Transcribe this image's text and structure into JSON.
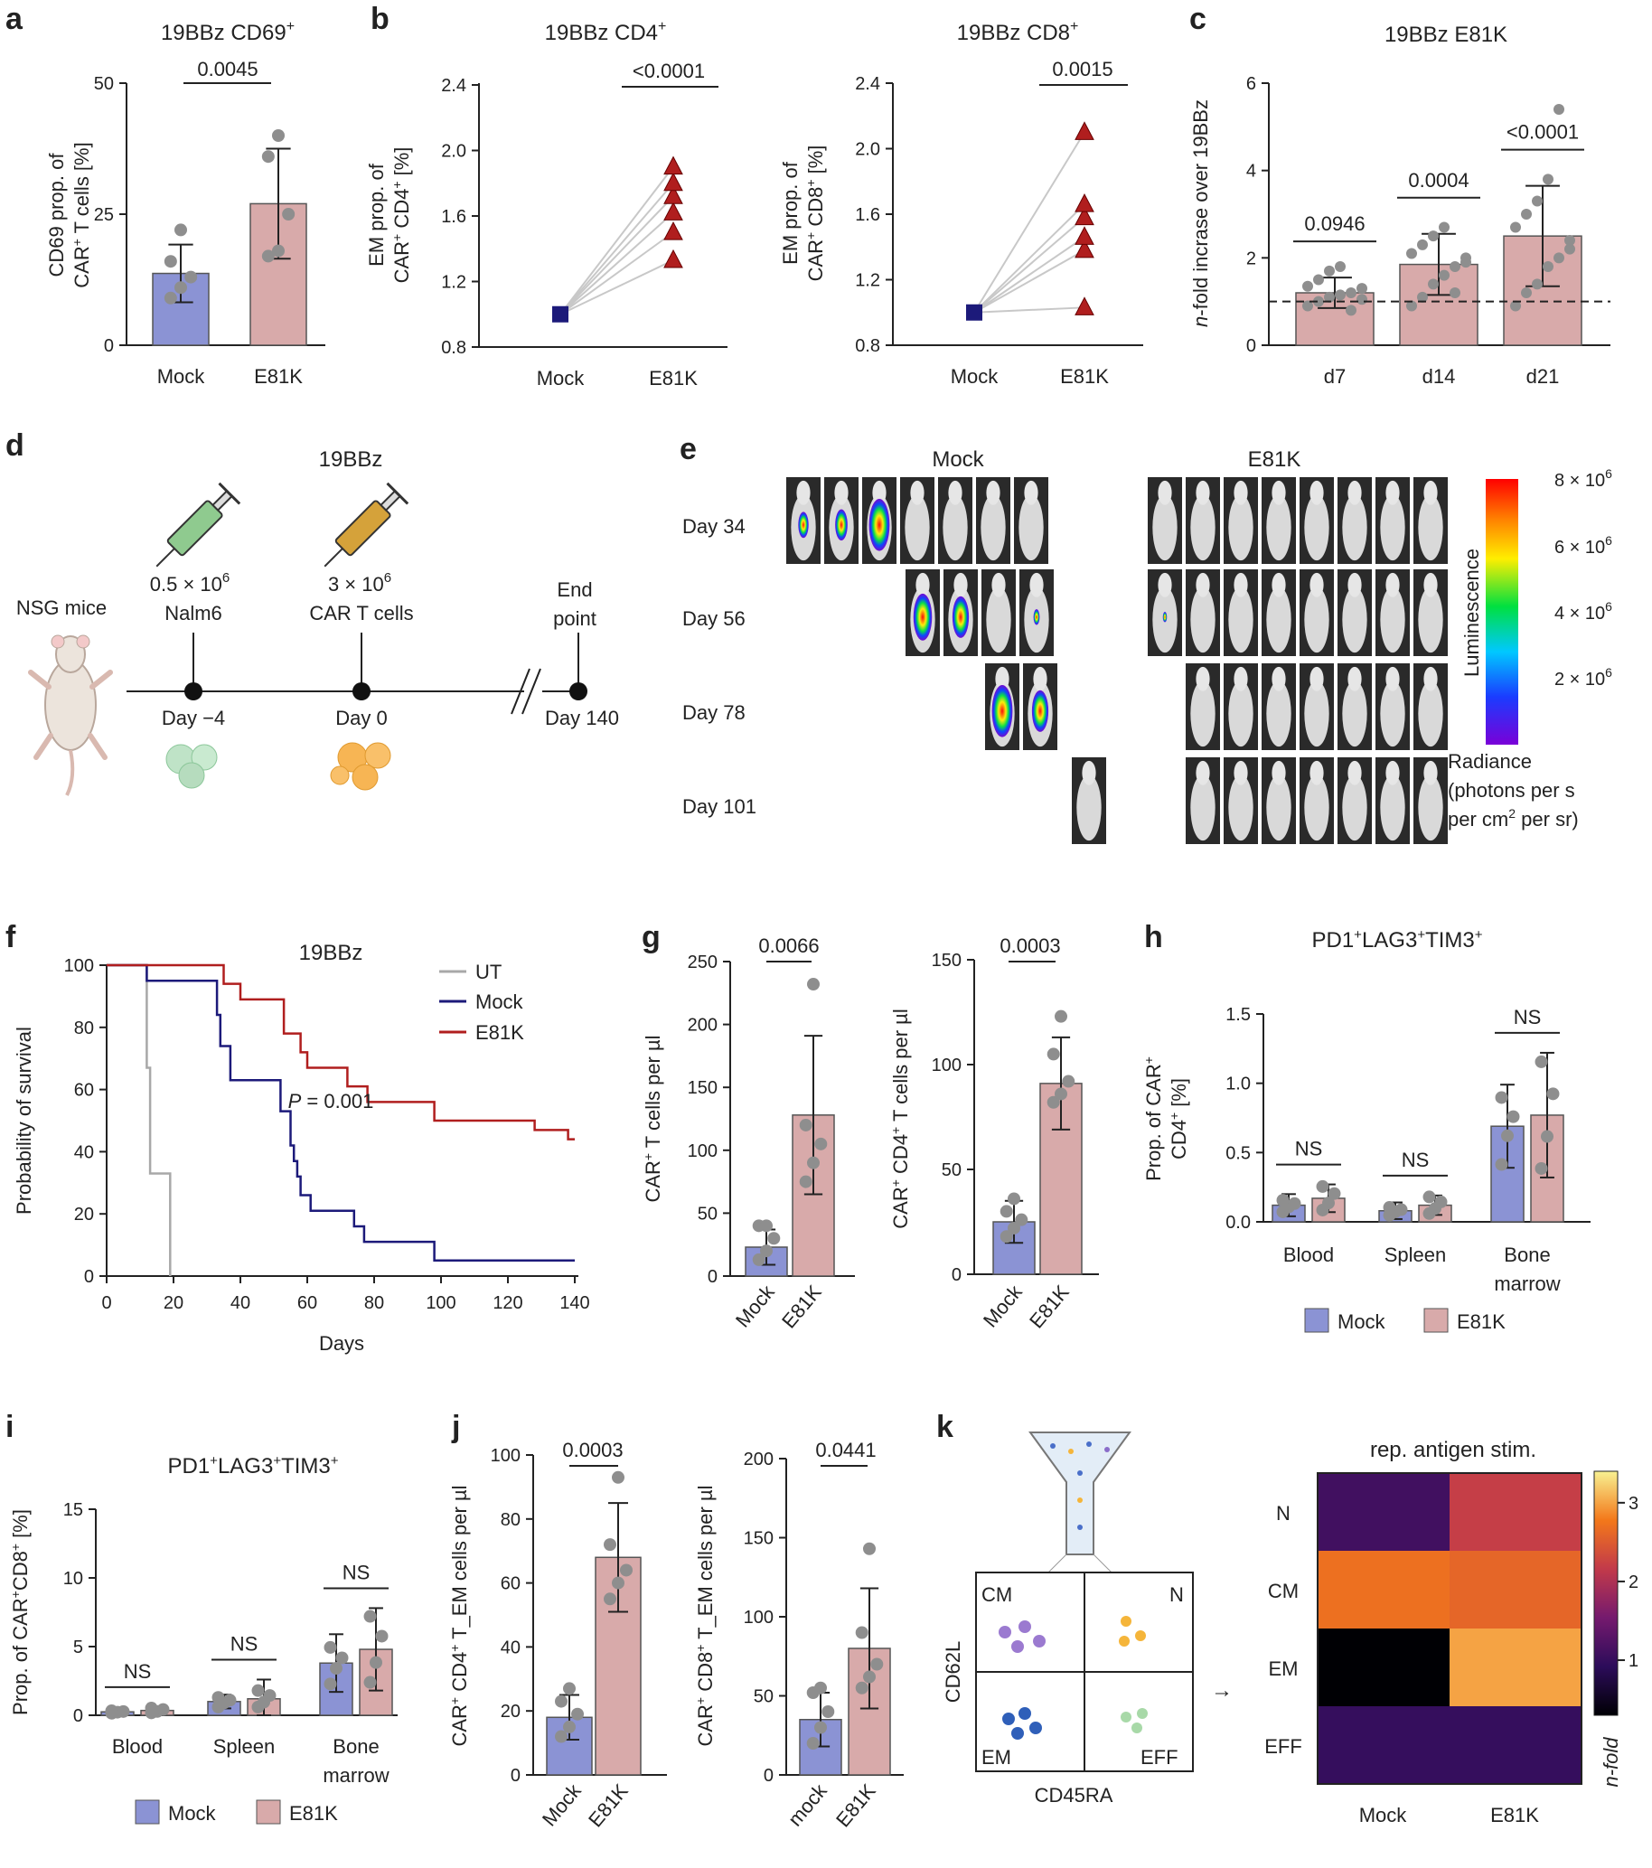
{
  "panel_labels": {
    "a": "a",
    "b": "b",
    "c": "c",
    "d": "d",
    "e": "e",
    "f": "f",
    "g": "g",
    "h": "h",
    "i": "i",
    "j": "j",
    "k": "k"
  },
  "colors": {
    "mock": "#8b93d4",
    "e81k": "#d8aaaa",
    "mock_dark": "#1c1a7a",
    "e81k_dark": "#b01e1e",
    "dot": "#8e8e8e",
    "ut": "#a8a8a8"
  },
  "chart_data": [
    {
      "id": "a",
      "type": "bar",
      "title": "19BBz CD69+",
      "ylabel": "CD69 prop. of CAR+ T cells [%]",
      "categories": [
        "Mock",
        "E81K"
      ],
      "values": [
        13.7,
        27
      ],
      "errors": [
        5.5,
        10.5
      ],
      "ylim": [
        0,
        50
      ],
      "yticks": [
        0,
        25,
        50
      ],
      "points": [
        [
          9,
          11,
          13,
          16,
          22
        ],
        [
          17,
          18,
          25,
          36,
          40
        ]
      ],
      "significance": [
        {
          "pair": [
            0,
            1
          ],
          "label": "0.0045"
        }
      ]
    },
    {
      "id": "b1",
      "type": "line",
      "title": "19BBz CD4+",
      "ylabel": "EM prop. of CAR+ CD4+ [%]",
      "categories": [
        "Mock",
        "E81K"
      ],
      "ylim": [
        0.8,
        2.4
      ],
      "yticks": [
        0.8,
        1.2,
        1.6,
        2.0,
        2.4
      ],
      "mock_value": 1.0,
      "e81k_values": [
        1.33,
        1.5,
        1.62,
        1.72,
        1.8,
        1.9
      ],
      "significance": "<0.0001"
    },
    {
      "id": "b2",
      "type": "line",
      "title": "19BBz CD8+",
      "ylabel": "EM prop. of CAR+ CD8+ [%]",
      "categories": [
        "Mock",
        "E81K"
      ],
      "ylim": [
        0.8,
        2.4
      ],
      "yticks": [
        0.8,
        1.2,
        1.6,
        2.0,
        2.4
      ],
      "mock_value": 1.0,
      "e81k_values": [
        1.03,
        1.38,
        1.46,
        1.58,
        1.66,
        2.1
      ],
      "significance": "0.0015"
    },
    {
      "id": "c",
      "type": "bar",
      "title": "19BBz E81K",
      "ylabel": "n-fold incrase over 19BBz",
      "categories": [
        "d7",
        "d14",
        "d21"
      ],
      "values": [
        1.2,
        1.85,
        2.5
      ],
      "errors": [
        0.35,
        0.7,
        1.15
      ],
      "ylim": [
        0,
        6
      ],
      "yticks": [
        0,
        2,
        4,
        6
      ],
      "reference": 1,
      "significance": [
        "0.0946",
        "0.0004",
        "<0.0001"
      ]
    },
    {
      "id": "f",
      "type": "line",
      "title": "19BBz",
      "ylabel": "Probability of survival",
      "xlabel": "Days",
      "xlim": [
        0,
        140
      ],
      "ylim": [
        0,
        100
      ],
      "xticks": [
        0,
        20,
        40,
        60,
        80,
        100,
        120,
        140
      ],
      "yticks": [
        0,
        20,
        40,
        60,
        80,
        100
      ],
      "series": [
        {
          "name": "UT",
          "steps": [
            [
              0,
              100
            ],
            [
              11,
              100
            ],
            [
              12,
              67
            ],
            [
              13,
              33
            ],
            [
              19,
              0
            ]
          ]
        },
        {
          "name": "Mock",
          "steps": [
            [
              0,
              100
            ],
            [
              12,
              100
            ],
            [
              12,
              95
            ],
            [
              32,
              95
            ],
            [
              33,
              84
            ],
            [
              34,
              74
            ],
            [
              37,
              63
            ],
            [
              51,
              63
            ],
            [
              52,
              53
            ],
            [
              55,
              42
            ],
            [
              56,
              37
            ],
            [
              57,
              32
            ],
            [
              58,
              26
            ],
            [
              61,
              21
            ],
            [
              72,
              21
            ],
            [
              74,
              16
            ],
            [
              77,
              11
            ],
            [
              97,
              11
            ],
            [
              98,
              5
            ],
            [
              140,
              5
            ]
          ]
        },
        {
          "name": "E81K",
          "steps": [
            [
              0,
              100
            ],
            [
              34,
              100
            ],
            [
              35,
              94
            ],
            [
              40,
              89
            ],
            [
              52,
              89
            ],
            [
              53,
              78
            ],
            [
              58,
              72
            ],
            [
              60,
              67
            ],
            [
              71,
              67
            ],
            [
              72,
              61
            ],
            [
              78,
              56
            ],
            [
              97,
              56
            ],
            [
              98,
              50
            ],
            [
              126,
              50
            ],
            [
              128,
              47
            ],
            [
              137,
              47
            ],
            [
              138,
              44
            ],
            [
              140,
              44
            ]
          ]
        }
      ],
      "annotation": "P = 0.001"
    },
    {
      "id": "g1",
      "type": "bar",
      "ylabel": "CAR+ T cells per µl",
      "categories": [
        "Mock",
        "E81K"
      ],
      "values": [
        23,
        128
      ],
      "errors": [
        14,
        63
      ],
      "ylim": [
        0,
        250
      ],
      "yticks": [
        0,
        50,
        100,
        150,
        200,
        250
      ],
      "points": [
        [
          13,
          20,
          30,
          40,
          40
        ],
        [
          75,
          90,
          105,
          120,
          232
        ]
      ],
      "significance": "0.0066"
    },
    {
      "id": "g2",
      "type": "bar",
      "ylabel": "CAR+ CD4+ T cells per µl",
      "categories": [
        "Mock",
        "E81K"
      ],
      "values": [
        25,
        91
      ],
      "errors": [
        10,
        22
      ],
      "ylim": [
        0,
        150
      ],
      "yticks": [
        0,
        50,
        100,
        150
      ],
      "points": [
        [
          18,
          22,
          26,
          30,
          36
        ],
        [
          82,
          86,
          92,
          105,
          123
        ]
      ],
      "significance": "0.0003"
    },
    {
      "id": "h",
      "type": "bar",
      "title": "PD1+LAG3+TIM3+",
      "ylabel": "Prop. of CAR+ CD4+ [%]",
      "categories": [
        "Blood",
        "Spleen",
        "Bone marrow"
      ],
      "series": [
        {
          "name": "Mock",
          "values": [
            0.12,
            0.08,
            0.69
          ],
          "errors": [
            0.08,
            0.06,
            0.3
          ]
        },
        {
          "name": "E81K",
          "values": [
            0.17,
            0.12,
            0.77
          ],
          "errors": [
            0.1,
            0.07,
            0.45
          ]
        }
      ],
      "ylim": [
        0,
        1.5
      ],
      "yticks": [
        0,
        0.5,
        1.0,
        1.5
      ],
      "significance": [
        "NS",
        "NS",
        "NS"
      ]
    },
    {
      "id": "i",
      "type": "bar",
      "title": "PD1+LAG3+TIM3+",
      "ylabel": "Prop. of CAR+CD8+ [%]",
      "categories": [
        "Blood",
        "Spleen",
        "Bone marrow"
      ],
      "series": [
        {
          "name": "Mock",
          "values": [
            0.25,
            1.0,
            3.8
          ],
          "errors": [
            0.2,
            0.5,
            2.1
          ]
        },
        {
          "name": "E81K",
          "values": [
            0.35,
            1.2,
            4.8
          ],
          "errors": [
            0.25,
            1.4,
            3.0
          ]
        }
      ],
      "ylim": [
        0,
        15
      ],
      "yticks": [
        0,
        5,
        10,
        15
      ],
      "significance": [
        "NS",
        "NS",
        "NS"
      ]
    },
    {
      "id": "j1",
      "type": "bar",
      "ylabel": "CAR+ CD4+ T_EM cells per µl",
      "categories": [
        "Mock",
        "E81K"
      ],
      "values": [
        18,
        68
      ],
      "errors": [
        7,
        17
      ],
      "ylim": [
        0,
        100
      ],
      "yticks": [
        0,
        20,
        40,
        60,
        80,
        100
      ],
      "points": [
        [
          12,
          15,
          19,
          23,
          27
        ],
        [
          55,
          60,
          64,
          72,
          93
        ]
      ],
      "significance": "0.0003"
    },
    {
      "id": "j2",
      "type": "bar",
      "ylabel": "CAR+ CD8+ T_EM cells per µl",
      "categories": [
        "mock",
        "E81K"
      ],
      "values": [
        35,
        80
      ],
      "errors": [
        17,
        38
      ],
      "ylim": [
        0,
        200
      ],
      "yticks": [
        0,
        50,
        100,
        150,
        200
      ],
      "points": [
        [
          20,
          30,
          40,
          52,
          55
        ],
        [
          55,
          62,
          70,
          90,
          143
        ]
      ],
      "significance": "0.0441"
    },
    {
      "id": "k",
      "type": "heatmap",
      "title": "rep. antigen stim.",
      "rows": [
        "N",
        "CM",
        "EM",
        "EFF"
      ],
      "columns": [
        "Mock",
        "E81K"
      ],
      "values": [
        [
          1.1,
          2.2
        ],
        [
          2.7,
          2.6
        ],
        [
          0.3,
          3.0
        ],
        [
          1.0,
          1.0
        ]
      ],
      "colorbar_ticks": [
        1,
        2,
        3
      ],
      "colorbar_label": "n-fold"
    }
  ],
  "legend": {
    "mock": "Mock",
    "e81k": "E81K"
  },
  "survival_legend": [
    "UT",
    "Mock",
    "E81K"
  ],
  "text": {
    "a_title": "19BBz CD69",
    "b1_title": "19BBz CD4",
    "b2_title": "19BBz CD8",
    "c_title": "19BBz E81K",
    "a_ylabel1": "CD69 prop. of",
    "a_ylabel2": "CAR",
    "a_ylabel3": " T cells [%]",
    "b1_ylabel1": "EM prop. of",
    "b1_ylabel2": "CAR",
    "b1_ylabel3": " CD4",
    "b1_ylabel4": " [%]",
    "b2_ylabel1": "EM prop. of",
    "b2_ylabel2": "CAR",
    "b2_ylabel3": " CD8",
    "b2_ylabel4": " [%]",
    "c_ylabel_n": "n",
    "c_ylabel_rest": "-fold incrase over 19BBz",
    "sup_plus": "+",
    "d_title": "19BBz",
    "d_nsg": "NSG mice",
    "d_dose1": "0.5 × 10",
    "d_cell1": "Nalm6",
    "d_dose2": "3 × 10",
    "d_cell2": "CAR T cells",
    "d_sup6": "6",
    "d_end1": "End",
    "d_end2": "point",
    "d_day1": "Day −4",
    "d_day2": "Day 0",
    "d_day3": "Day 140",
    "e_mock": "Mock",
    "e_e81k": "E81K",
    "e_days": [
      "Day 34",
      "Day 56",
      "Day 78",
      "Day 101"
    ],
    "e_cbar_ticks": [
      "8 × 10",
      "6 × 10",
      "4 × 10",
      "2 × 10"
    ],
    "e_cbar_label": "Luminescence",
    "e_rad1": "Radiance",
    "e_rad2": "(photons per s",
    "e_rad3": "per cm",
    "e_rad3b": " per sr)",
    "e_sup2": "2",
    "f_title": "19BBz",
    "f_p_italic": "P",
    "f_p_rest": " = 0.001",
    "g1_ylabel_a": "CAR",
    "g1_ylabel_b": " T cells per µl",
    "g2_ylabel_a": "CAR",
    "g2_ylabel_b": " CD4",
    "g2_ylabel_c": " T cells per µl",
    "h_title_a": "PD1",
    "h_title_b": "LAG3",
    "h_title_c": "TIM3",
    "h_ylabel1a": "Prop. of CAR",
    "h_ylabel2a": "CD4",
    "h_ylabel2b": " [%]",
    "i_ylabel_a": "Prop. of CAR",
    "i_ylabel_b": "CD8",
    "i_ylabel_c": " [%]",
    "j1_ylabel_a": "CAR",
    "j1_ylabel_b": " CD4",
    "j1_ylabel_c": " T_EM cells per µl",
    "j2_ylabel_a": "CAR",
    "j2_ylabel_b": " CD8",
    "j2_ylabel_c": " T_EM cells per µl",
    "bone": "Bone",
    "marrow": "marrow",
    "k_cd62l": "CD62L",
    "k_cd45ra": "CD45RA",
    "k_cm": "CM",
    "k_n": "N",
    "k_em": "EM",
    "k_eff": "EFF",
    "k_arrow": "→"
  }
}
